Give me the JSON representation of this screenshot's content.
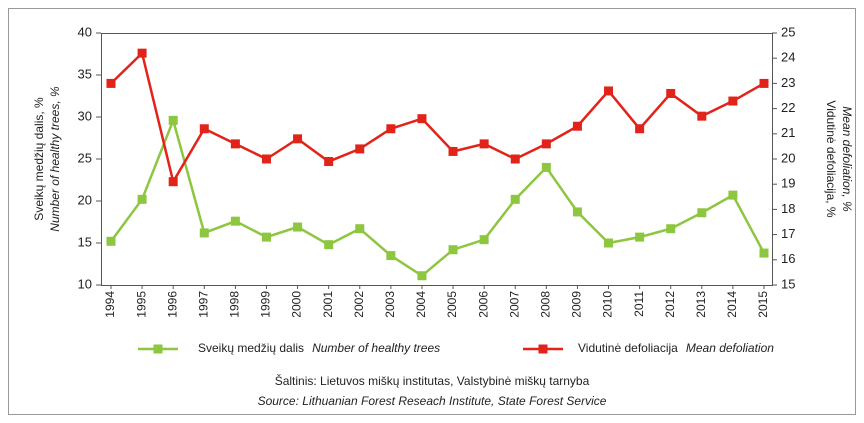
{
  "chart_data": {
    "type": "line",
    "y_label": "Sveikų medžių dalis, %",
    "y_label_en": "Number of healthy trees, %",
    "y2_label": "Vidutinė defoliacija, %",
    "y2_label_en": "Mean defoliation, %",
    "categories": [
      "1994",
      "1995",
      "1996",
      "1997",
      "1998",
      "1999",
      "2000",
      "2001",
      "2002",
      "2003",
      "2004",
      "2005",
      "2006",
      "2007",
      "2008",
      "2009",
      "2010",
      "2011",
      "2012",
      "2013",
      "2014",
      "2015"
    ],
    "series": [
      {
        "name": "Sveikų medžių dalis",
        "name_en": "Number of healthy trees",
        "color": "#8dc63f",
        "axis": "y",
        "values": [
          15.2,
          20.2,
          29.6,
          16.2,
          17.6,
          15.7,
          16.9,
          14.8,
          16.7,
          13.5,
          11.1,
          14.2,
          15.4,
          20.2,
          24.0,
          18.7,
          15.0,
          15.7,
          16.7,
          18.6,
          20.7,
          13.8
        ]
      },
      {
        "name": "Vidutinė defoliacija",
        "name_en": "Mean defoliation",
        "color": "#e2231a",
        "axis": "y2",
        "values": [
          23.0,
          24.2,
          19.1,
          21.2,
          20.6,
          20.0,
          20.8,
          19.9,
          20.4,
          21.2,
          21.6,
          20.3,
          20.6,
          20.0,
          20.6,
          21.3,
          22.7,
          21.2,
          22.6,
          21.7,
          22.3,
          23.0
        ]
      }
    ],
    "ylim": [
      10,
      40
    ],
    "yticks": [
      10,
      15,
      20,
      25,
      30,
      35,
      40
    ],
    "y2lim": [
      15,
      25
    ],
    "y2ticks": [
      15,
      16,
      17,
      18,
      19,
      20,
      21,
      22,
      23,
      24,
      25
    ],
    "source": "Šaltinis: Lietuvos miškų institutas, Valstybinė miškų tarnyba",
    "source_en": "Source: Lithuanian Forest Reseach Institute, State Forest Service"
  }
}
